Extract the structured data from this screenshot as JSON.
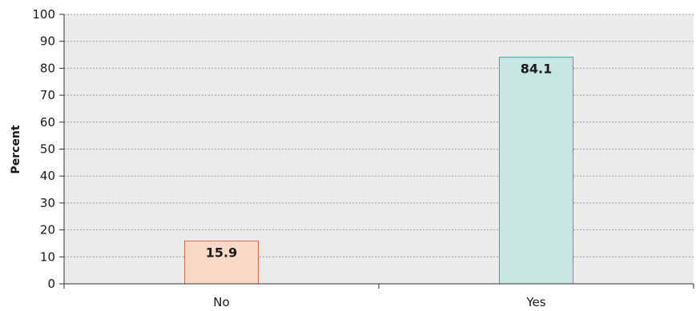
{
  "chart_data": {
    "type": "bar",
    "categories": [
      "No",
      "Yes"
    ],
    "values": [
      15.9,
      84.1
    ],
    "data_labels": [
      "15.9",
      "84.1"
    ],
    "ylabel": "Percent",
    "xlabel": "",
    "ylim": [
      0,
      100
    ],
    "yticks": [
      "0",
      "10",
      "20",
      "30",
      "40",
      "50",
      "60",
      "70",
      "80",
      "90",
      "100"
    ],
    "grid": "horizontal-dashed",
    "colors": {
      "plot_background": "#ebebeb",
      "grid": "#9a9a9a",
      "axis": "#333333",
      "bars": [
        {
          "fill": "#f8d8c6",
          "stroke": "#e07050"
        },
        {
          "fill": "#c6e6e2",
          "stroke": "#3aaaa0"
        }
      ]
    }
  }
}
